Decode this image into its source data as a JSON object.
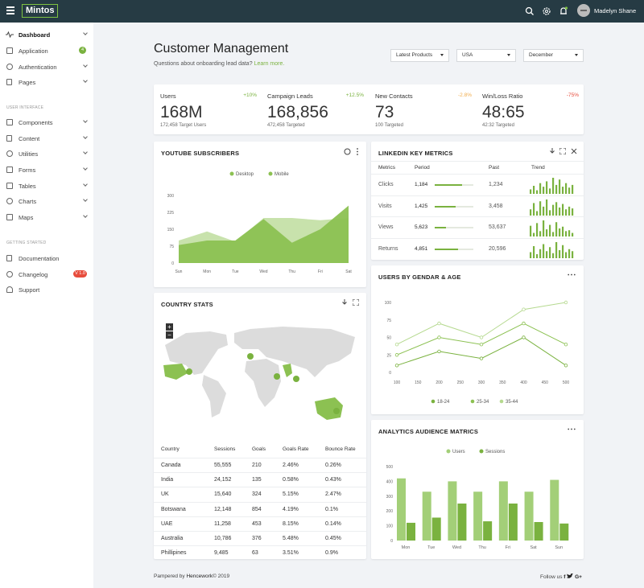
{
  "app": {
    "logo": "Mintos",
    "user_name": "Madelyn Shane"
  },
  "sidebar": {
    "items": [
      {
        "label": "Dashboard",
        "active": true,
        "chevron": true
      },
      {
        "label": "Application",
        "badge": "4"
      },
      {
        "label": "Authentication",
        "chevron": true
      },
      {
        "label": "Pages",
        "chevron": true
      }
    ],
    "section_ui": "USER INTERFACE",
    "ui_items": [
      {
        "label": "Components"
      },
      {
        "label": "Content"
      },
      {
        "label": "Utilities"
      },
      {
        "label": "Forms"
      },
      {
        "label": "Tables"
      },
      {
        "label": "Charts"
      },
      {
        "label": "Maps"
      }
    ],
    "section_start": "GETTING STARTED",
    "start_items": [
      {
        "label": "Documentation"
      },
      {
        "label": "Changelog",
        "badge": "V 1.0"
      },
      {
        "label": "Support"
      }
    ]
  },
  "page": {
    "title": "Customer Management",
    "subtitle": "Questions about onboarding lead data?",
    "subtitle_link": "Learn more.",
    "filters": [
      "Latest Products",
      "USA",
      "December"
    ]
  },
  "kpis": [
    {
      "label": "Users",
      "change": "+10%",
      "value": "168M",
      "sub": "172,458 Target Users",
      "color": "#7ab23f"
    },
    {
      "label": "Campaign Leads",
      "change": "+12.5%",
      "value": "168,856",
      "sub": "472,458 Targeted",
      "color": "#7ab23f"
    },
    {
      "label": "New Contacts",
      "change": "-2.8%",
      "value": "73",
      "sub": "100 Targeted",
      "color": "#f0ad4e"
    },
    {
      "label": "Win/Loss Ratio",
      "change": "-75%",
      "value": "48:65",
      "sub": "42:32 Targeted",
      "color": "#e74c3c"
    }
  ],
  "youtube": {
    "title": "YOUTUBE SUBSCRIBERS",
    "legend": [
      "Desktop",
      "Mobile"
    ],
    "chart_data": {
      "type": "area",
      "categories": [
        "Sun",
        "Mon",
        "Tue",
        "Wed",
        "Thu",
        "Fri",
        "Sat"
      ],
      "ylim": [
        0,
        300
      ],
      "yticks": [
        "0",
        "75",
        "150",
        "225",
        "300"
      ],
      "series": [
        {
          "name": "Desktop",
          "values": [
            80,
            100,
            100,
            195,
            90,
            150,
            255
          ],
          "color": "#8cc152"
        },
        {
          "name": "Mobile",
          "values": [
            100,
            140,
            95,
            200,
            200,
            190,
            200
          ],
          "color": "#c2dfa3"
        }
      ]
    }
  },
  "linkedin": {
    "title": "LINKEDIN KEY METRICS",
    "headers": [
      "Metrics",
      "Period",
      "Past",
      "Trend"
    ],
    "rows": [
      {
        "metric": "Clicks",
        "period": "1,184",
        "past": "1,234",
        "fill": 0.7,
        "trend": [
          5,
          9,
          4,
          12,
          8,
          14,
          6,
          18,
          10,
          16,
          8,
          12,
          7,
          10
        ]
      },
      {
        "metric": "Visits",
        "period": "1,425",
        "past": "3,458",
        "fill": 0.55,
        "trend": [
          7,
          14,
          5,
          16,
          10,
          18,
          6,
          12,
          15,
          9,
          13,
          7,
          10,
          8
        ]
      },
      {
        "metric": "Views",
        "period": "5,623",
        "past": "53,637",
        "fill": 0.3,
        "trend": [
          12,
          4,
          15,
          6,
          18,
          8,
          13,
          5,
          16,
          9,
          11,
          6,
          7,
          4
        ]
      },
      {
        "metric": "Returns",
        "period": "4,851",
        "past": "20,596",
        "fill": 0.6,
        "trend": [
          6,
          12,
          4,
          9,
          14,
          7,
          11,
          5,
          16,
          8,
          13,
          6,
          9,
          7
        ]
      }
    ]
  },
  "gender": {
    "title": "USERS BY GENDAR & AGE",
    "chart_data": {
      "type": "line",
      "x": [
        "100",
        "150",
        "200",
        "250",
        "300",
        "350",
        "400",
        "450",
        "500"
      ],
      "ylim": [
        0,
        100
      ],
      "yticks": [
        "0",
        "25",
        "50",
        "75",
        "100"
      ],
      "series": [
        {
          "name": "18-24",
          "values": [
            10,
            null,
            30,
            null,
            20,
            null,
            50,
            null,
            10
          ],
          "color": "#7ab23f"
        },
        {
          "name": "25-34",
          "values": [
            25,
            null,
            50,
            null,
            40,
            null,
            70,
            null,
            40
          ],
          "color": "#8cc152"
        },
        {
          "name": "35-44",
          "values": [
            40,
            null,
            70,
            null,
            50,
            null,
            90,
            null,
            100
          ],
          "color": "#b5d98f"
        }
      ]
    }
  },
  "country": {
    "title": "COUNTRY STATS",
    "headers": [
      "Country",
      "Sessions",
      "Goals",
      "Goals Rate",
      "Bounce Rate"
    ],
    "rows": [
      [
        "Canada",
        "55,555",
        "210",
        "2.46%",
        "0.26%"
      ],
      [
        "India",
        "24,152",
        "135",
        "0.58%",
        "0.43%"
      ],
      [
        "UK",
        "15,640",
        "324",
        "5.15%",
        "2.47%"
      ],
      [
        "Botswana",
        "12,148",
        "854",
        "4.19%",
        "0.1%"
      ],
      [
        "UAE",
        "11,258",
        "453",
        "8.15%",
        "0.14%"
      ],
      [
        "Australia",
        "10,786",
        "376",
        "5.48%",
        "0.45%"
      ],
      [
        "Phillipines",
        "9,485",
        "63",
        "3.51%",
        "0.9%"
      ]
    ]
  },
  "analytics": {
    "title": "ANALYTICS AUDIENCE MATRICS",
    "legend": [
      "Users",
      "Sessions"
    ],
    "chart_data": {
      "type": "bar",
      "categories": [
        "Mon",
        "Tue",
        "Wed",
        "Thu",
        "Fri",
        "Sat",
        "Sun"
      ],
      "ylim": [
        0,
        500
      ],
      "yticks": [
        "0",
        "100",
        "200",
        "300",
        "400",
        "500"
      ],
      "series": [
        {
          "name": "Users",
          "values": [
            420,
            330,
            400,
            330,
            400,
            330,
            410
          ],
          "color": "#a3cf78"
        },
        {
          "name": "Sessions",
          "values": [
            120,
            155,
            250,
            130,
            250,
            125,
            115
          ],
          "color": "#7ab23f"
        }
      ]
    }
  },
  "footer": {
    "left_prefix": "Pampered by",
    "left_brand": "Hencework",
    "left_year": "© 2019",
    "follow": "Follow us"
  }
}
